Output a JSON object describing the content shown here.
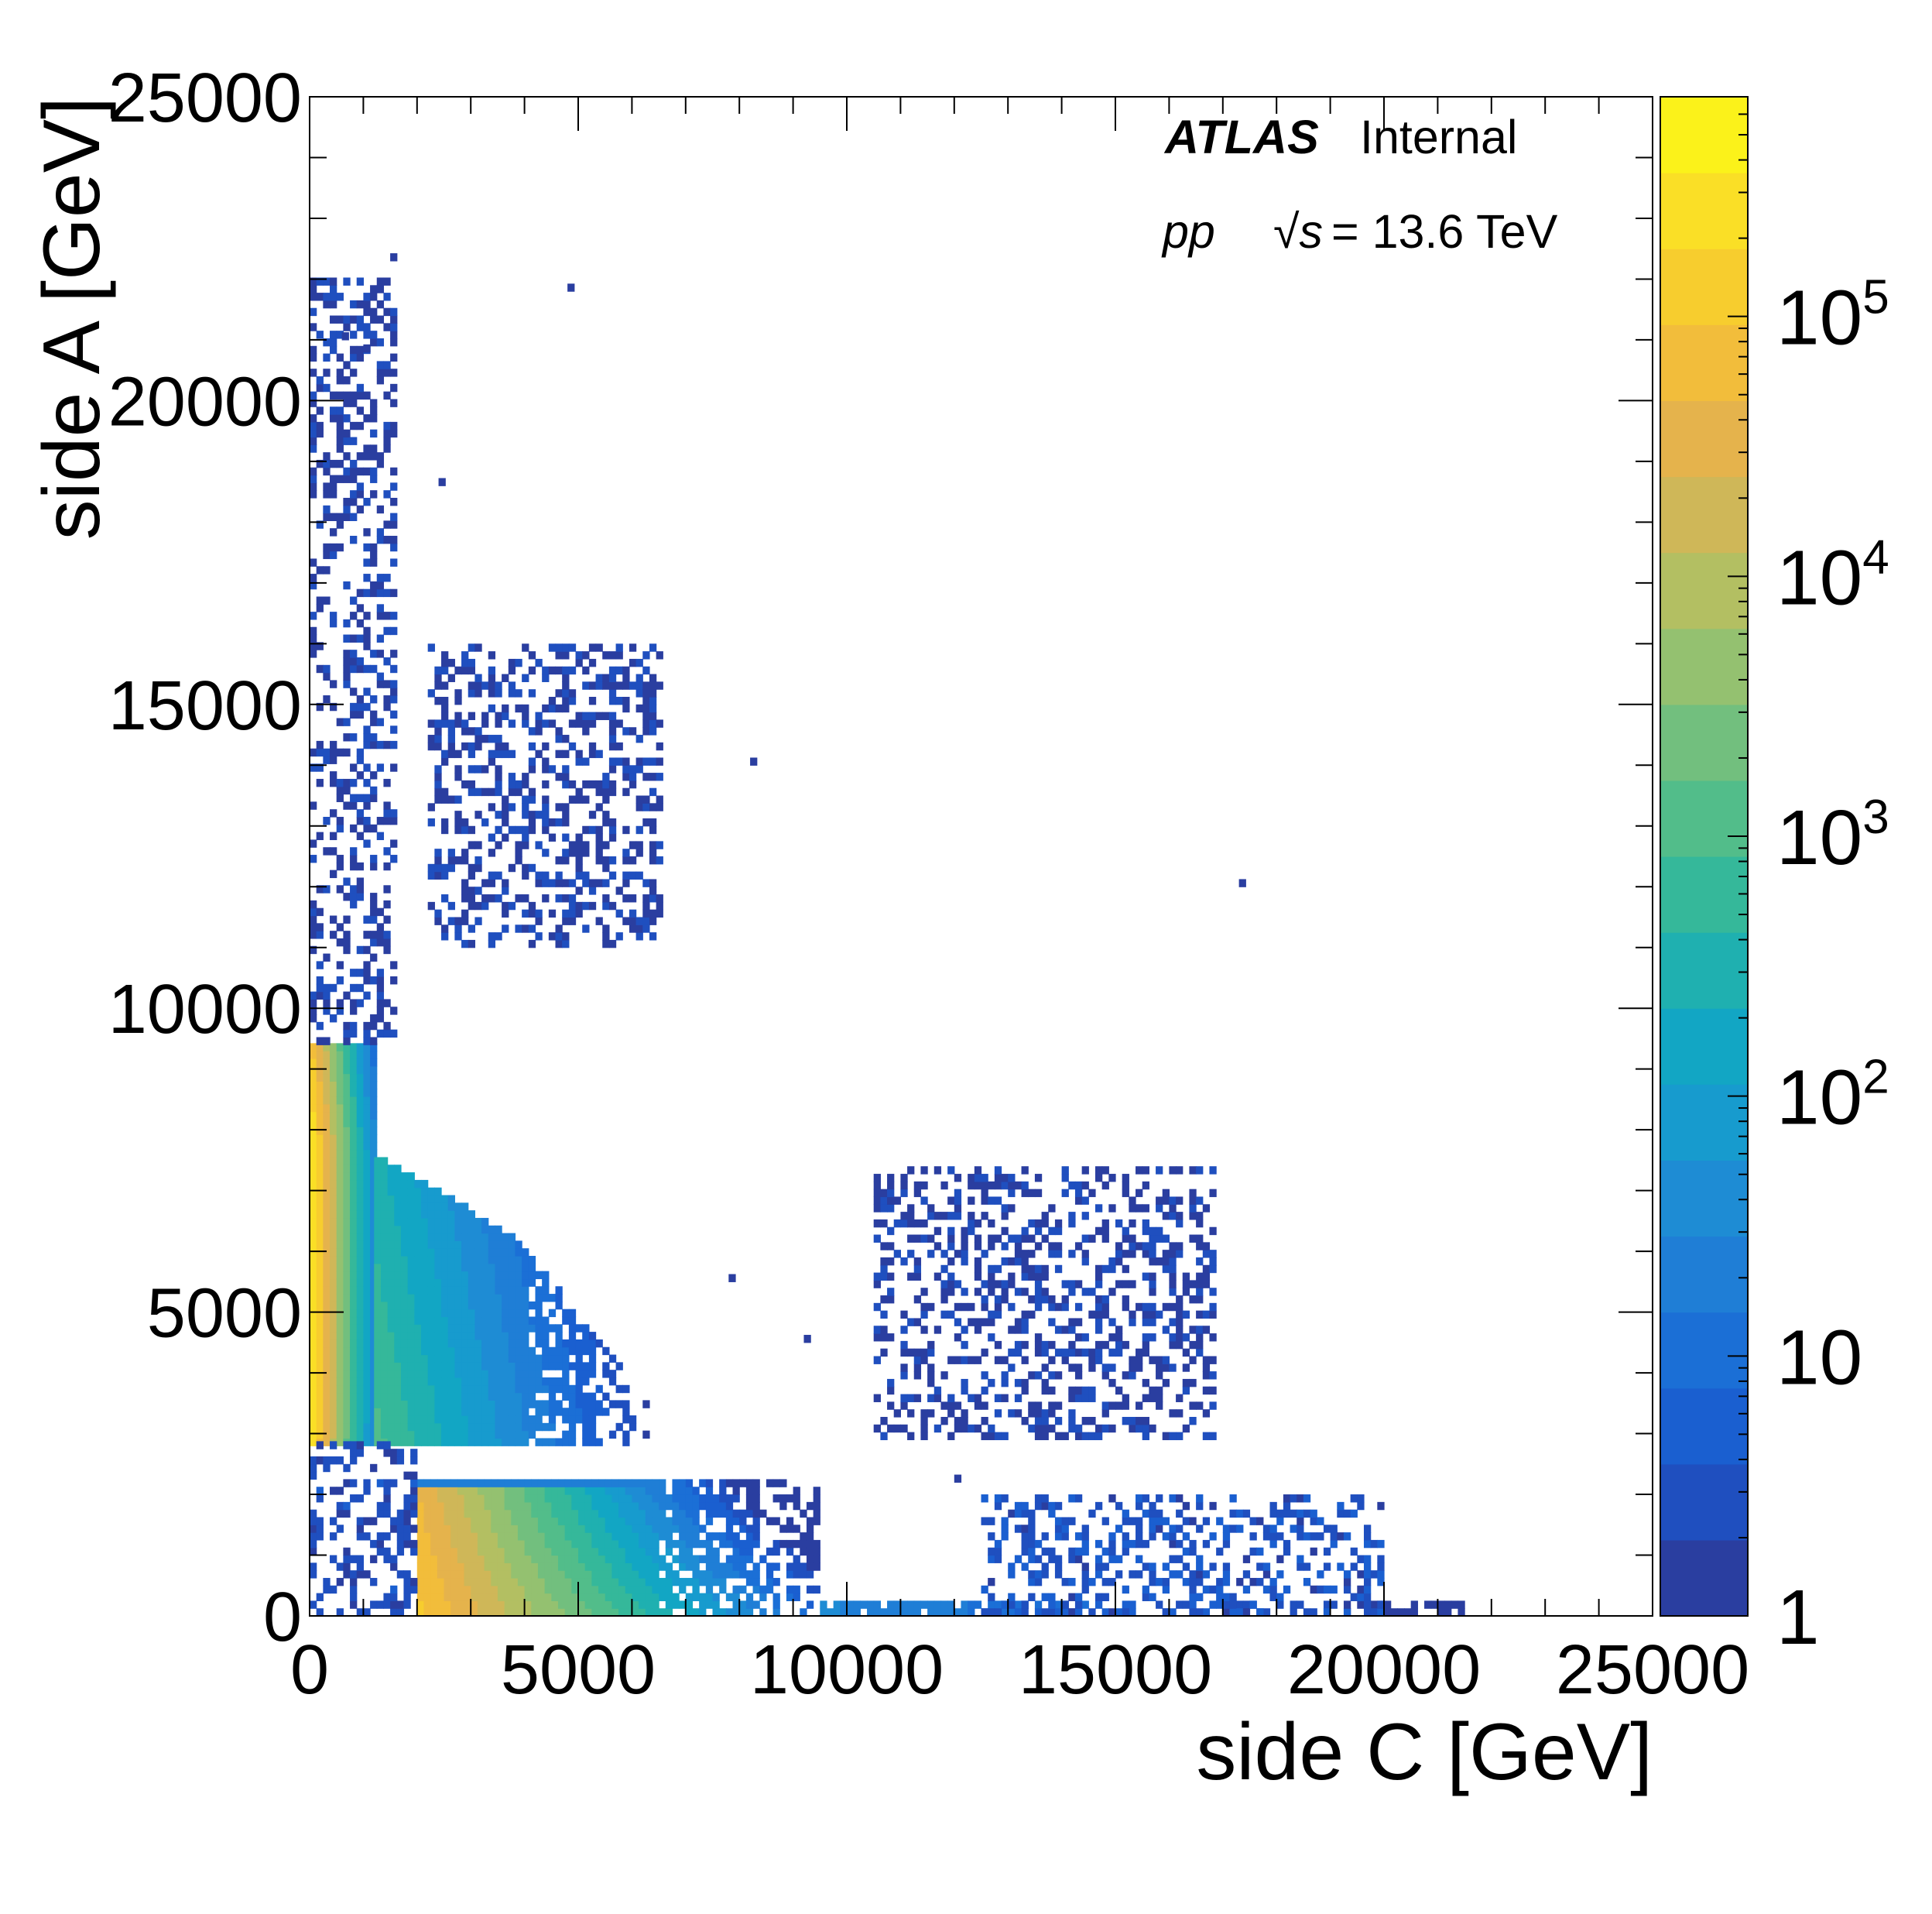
{
  "chart_data": {
    "type": "heatmap",
    "title": "",
    "xlabel": "side C [GeV]",
    "ylabel": "side A [GeV]",
    "xlim": [
      0,
      25000
    ],
    "ylim": [
      0,
      25000
    ],
    "x_ticks": [
      "0",
      "5000",
      "10000",
      "15000",
      "20000",
      "25000"
    ],
    "y_ticks": [
      "0",
      "5000",
      "10000",
      "15000",
      "20000",
      "25000"
    ],
    "colorbar": {
      "scale": "log",
      "range": [
        1,
        700000
      ],
      "tick_values": [
        1,
        10,
        100,
        1000,
        10000,
        100000
      ],
      "tick_labels": [
        {
          "base": "1",
          "exp": ""
        },
        {
          "base": "10",
          "exp": ""
        },
        {
          "base": "10",
          "exp": "2"
        },
        {
          "base": "10",
          "exp": "3"
        },
        {
          "base": "10",
          "exp": "4"
        },
        {
          "base": "10",
          "exp": "5"
        }
      ],
      "palette": [
        "#2a3ea0",
        "#1f4fbf",
        "#1a5fd0",
        "#1b6fd6",
        "#1f7ed6",
        "#1e8cd4",
        "#179bce",
        "#12a6c4",
        "#1fb0b0",
        "#35b89a",
        "#52bd8a",
        "#72bf7e",
        "#94c170",
        "#b3bf62",
        "#cfb758",
        "#e5b34c",
        "#f2bd3b",
        "#f7cd2e",
        "#fadf26",
        "#fbf21a"
      ]
    },
    "regions": [
      {
        "name": "core",
        "x": [
          0,
          1200
        ],
        "y": [
          2800,
          9400
        ],
        "peak_log": 5.5,
        "kind": "dense"
      },
      {
        "name": "diag-band",
        "x": [
          1200,
          6300
        ],
        "y": [
          2800,
          7500
        ],
        "peak_log": 2.8,
        "kind": "dense"
      },
      {
        "name": "bottom-band",
        "x": [
          2000,
          9500
        ],
        "y": [
          0,
          2200
        ],
        "peak_log": 5.0,
        "kind": "dense"
      },
      {
        "name": "x-axis-tail",
        "x": [
          9500,
          21500
        ],
        "y": [
          0,
          200
        ],
        "peak_log": 1.5,
        "kind": "dense"
      },
      {
        "name": "left-gap-scatter",
        "x": [
          0,
          1900
        ],
        "y": [
          0,
          2800
        ],
        "peak_log": 0.6,
        "kind": "scatter"
      },
      {
        "name": "upper-left-cluster",
        "x": [
          2200,
          6500
        ],
        "y": [
          11000,
          16000
        ],
        "peak_log": 0.4,
        "kind": "scatter"
      },
      {
        "name": "lower-right-cluster",
        "x": [
          10500,
          16800
        ],
        "y": [
          2900,
          7400
        ],
        "peak_log": 0.4,
        "kind": "scatter"
      },
      {
        "name": "bottom-right-cluster",
        "x": [
          12500,
          20000
        ],
        "y": [
          0,
          2000
        ],
        "peak_log": 0.8,
        "kind": "scatter"
      },
      {
        "name": "left-edge-column",
        "x": [
          0,
          1600
        ],
        "y": [
          9400,
          22000
        ],
        "peak_log": 0.4,
        "kind": "scatter"
      }
    ]
  },
  "annotations": {
    "experiment": "ATLAS",
    "status": "Internal",
    "beam": "pp",
    "sqrt_s_symbol": "√s",
    "energy": "= 13.6 TeV"
  },
  "colors": {
    "frame": "#000000",
    "background": "#ffffff"
  }
}
